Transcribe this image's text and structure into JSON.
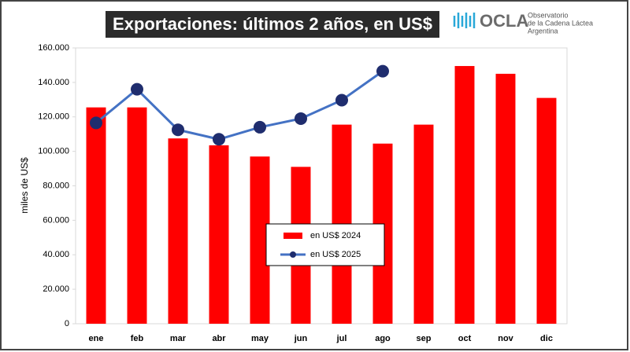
{
  "chart_data": {
    "type": "bar_line",
    "title": "Exportaciones: últimos 2 años, en US$",
    "y_label": "miles de US$",
    "categories": [
      "ene",
      "feb",
      "mar",
      "abr",
      "may",
      "jun",
      "jul",
      "ago",
      "sep",
      "oct",
      "nov",
      "dic"
    ],
    "series": [
      {
        "name": "en US$ 2024",
        "type": "bar",
        "color": "#ff0000",
        "values": [
          125500,
          125500,
          107500,
          103500,
          97000,
          91000,
          115500,
          104500,
          115500,
          149500,
          145000,
          131000
        ]
      },
      {
        "name": "en US$ 2025",
        "type": "line",
        "color": "#4472c4",
        "marker_color": "#1f2d6e",
        "values": [
          116500,
          136000,
          112500,
          107000,
          114000,
          119000,
          129700,
          146500,
          null,
          null,
          null,
          null
        ]
      }
    ],
    "ylim": [
      0,
      160000
    ],
    "yticks": [
      0,
      {
        "value": 20000,
        "label": "20.000"
      },
      {
        "value": 40000,
        "label": "40.000"
      },
      {
        "value": 60000,
        "label": "60.000"
      },
      {
        "value": 80000,
        "label": "80.000"
      },
      {
        "value": 100000,
        "label": "100.000"
      },
      {
        "value": 120000,
        "label": "120.000"
      },
      {
        "value": 140000,
        "label": "140.000"
      },
      {
        "value": 160000,
        "label": "160.000"
      }
    ],
    "grid": false,
    "legend": "center"
  },
  "logo": {
    "name": "OCLA",
    "lines": [
      "Observatorio",
      "de la Cadena Láctea",
      "Argentina"
    ]
  }
}
